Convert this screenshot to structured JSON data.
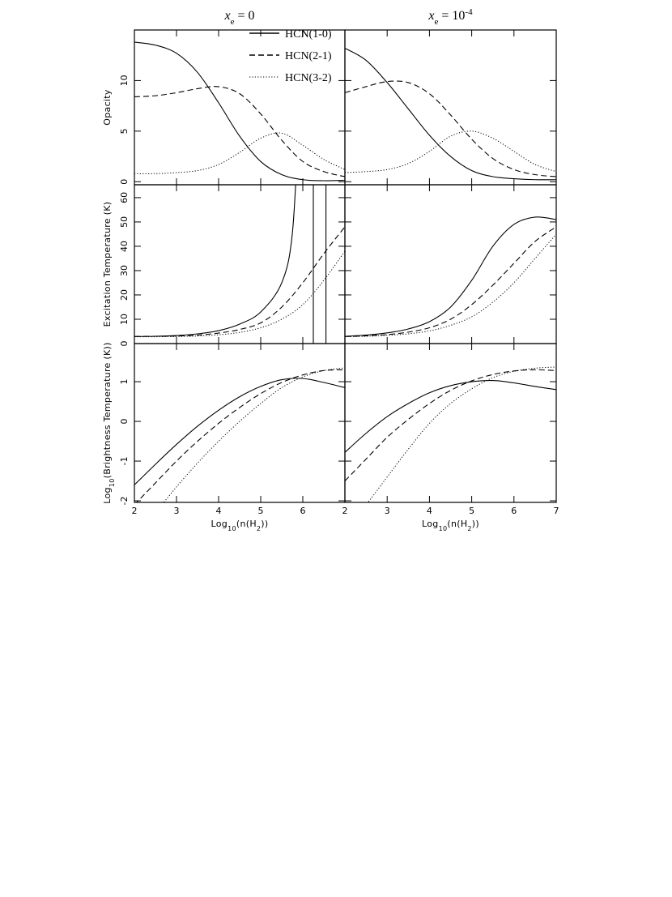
{
  "chart_data": [
    {
      "type": "line",
      "title": [
        {
          "text": "x",
          "style": "italic"
        },
        {
          "text": "e",
          "shift": "sub"
        },
        {
          "text": " = 0"
        }
      ],
      "ylabel": [
        {
          "text": "Opacity"
        }
      ],
      "x": [
        2,
        2.5,
        3,
        3.5,
        4,
        4.5,
        5,
        5.5,
        6,
        6.5,
        7
      ],
      "xlim": [
        2,
        7
      ],
      "xticks": [
        2,
        3,
        4,
        5,
        6
      ],
      "xtick_labels": false,
      "ylim": [
        -0.3,
        15
      ],
      "yticks": [
        0,
        5,
        10
      ],
      "ytick_labels": true,
      "legend": "upper right",
      "series": [
        {
          "name": "HCN(1-0)",
          "color": "#000000",
          "dash": "solid",
          "values": [
            13.8,
            13.5,
            12.7,
            10.8,
            7.8,
            4.5,
            2.0,
            0.7,
            0.2,
            0.1,
            0.15
          ]
        },
        {
          "name": "HCN(2-1)",
          "color": "#000000",
          "dash": "dashed",
          "values": [
            8.4,
            8.5,
            8.8,
            9.2,
            9.4,
            8.7,
            6.7,
            4.1,
            2.0,
            1.0,
            0.5
          ]
        },
        {
          "name": "HCN(3-2)",
          "color": "#000000",
          "dash": "dotted",
          "values": [
            0.8,
            0.8,
            0.9,
            1.1,
            1.7,
            2.9,
            4.3,
            4.8,
            3.6,
            2.2,
            1.2
          ]
        }
      ]
    },
    {
      "type": "line",
      "title": [
        {
          "text": "x",
          "style": "italic"
        },
        {
          "text": "e",
          "shift": "sub"
        },
        {
          "text": " = 10"
        },
        {
          "text": "-4",
          "shift": "sup"
        }
      ],
      "x": [
        2,
        2.5,
        3,
        3.5,
        4,
        4.5,
        5,
        5.5,
        6,
        6.5,
        7
      ],
      "xlim": [
        2,
        7
      ],
      "xticks": [
        2,
        3,
        4,
        5,
        6,
        7
      ],
      "xtick_labels": false,
      "ylim": [
        -0.3,
        15
      ],
      "yticks": [
        0,
        5,
        10
      ],
      "ytick_labels": false,
      "series": [
        {
          "color": "#000000",
          "dash": "solid",
          "values": [
            13.2,
            12.0,
            9.8,
            7.2,
            4.6,
            2.5,
            1.1,
            0.5,
            0.3,
            0.2,
            0.2
          ]
        },
        {
          "color": "#000000",
          "dash": "dashed",
          "values": [
            8.8,
            9.4,
            9.9,
            9.8,
            8.7,
            6.6,
            4.2,
            2.3,
            1.2,
            0.7,
            0.5
          ]
        },
        {
          "color": "#000000",
          "dash": "dotted",
          "values": [
            0.9,
            1.0,
            1.2,
            1.8,
            3.0,
            4.5,
            5.0,
            4.3,
            3.0,
            1.7,
            1.0
          ]
        }
      ]
    },
    {
      "type": "line",
      "ylabel": [
        {
          "text": "Excitation Temperature (K)"
        }
      ],
      "x": [
        2,
        2.5,
        3,
        3.5,
        4,
        4.5,
        5,
        5.5,
        6,
        6.5,
        7
      ],
      "xlim": [
        2,
        7
      ],
      "xticks": [
        2,
        3,
        4,
        5,
        6
      ],
      "xtick_labels": false,
      "ylim": [
        0,
        65.3
      ],
      "yticks": [
        0,
        10,
        20,
        30,
        40,
        50,
        60
      ],
      "ytick_labels": true,
      "series": [
        {
          "color": "#000000",
          "dash": "solid",
          "x": [
            2,
            2.5,
            3,
            3.5,
            4,
            4.5,
            5,
            5.5,
            5.75,
            5.9,
            6.0,
            6.25,
            6.25,
            6.4,
            6.55,
            6.55
          ],
          "values": [
            2.9,
            3.0,
            3.3,
            4.0,
            5.3,
            8.0,
            13,
            25,
            45,
            90,
            null,
            -10,
            100,
            null,
            -10,
            100
          ]
        },
        {
          "color": "#000000",
          "dash": "dashed",
          "values": [
            2.9,
            3.0,
            3.1,
            3.5,
            4.3,
            5.8,
            8.5,
            15,
            25,
            37,
            48
          ]
        },
        {
          "color": "#000000",
          "dash": "dotted",
          "values": [
            2.8,
            2.8,
            2.9,
            3.1,
            3.6,
            4.6,
            6.5,
            10,
            16,
            26,
            38
          ]
        }
      ]
    },
    {
      "type": "line",
      "x": [
        2,
        2.5,
        3,
        3.5,
        4,
        4.5,
        5,
        5.5,
        6,
        6.5,
        7
      ],
      "xlim": [
        2,
        7
      ],
      "xticks": [
        2,
        3,
        4,
        5,
        6,
        7
      ],
      "xtick_labels": false,
      "ylim": [
        0,
        65.3
      ],
      "yticks": [
        0,
        10,
        20,
        30,
        40,
        50,
        60
      ],
      "ytick_labels": false,
      "series": [
        {
          "color": "#000000",
          "dash": "solid",
          "values": [
            3,
            3.5,
            4.4,
            6,
            9,
            15,
            26,
            40,
            49,
            52,
            51
          ]
        },
        {
          "color": "#000000",
          "dash": "dashed",
          "values": [
            2.9,
            3.2,
            3.7,
            4.7,
            6.5,
            10,
            16,
            24,
            33,
            42,
            48
          ]
        },
        {
          "color": "#000000",
          "dash": "dotted",
          "values": [
            2.8,
            3.0,
            3.4,
            4.0,
            5.2,
            7.5,
            11,
            17,
            25,
            35,
            45
          ]
        }
      ]
    },
    {
      "type": "line",
      "ylabel": [
        {
          "text": "Log"
        },
        {
          "text": "10",
          "shift": "sub"
        },
        {
          "text": "(Brightness Temperature (K))"
        }
      ],
      "xlabel": [
        {
          "text": "Log"
        },
        {
          "text": "10",
          "shift": "sub"
        },
        {
          "text": "(n(H"
        },
        {
          "text": "2",
          "shift": "sub"
        },
        {
          "text": "))"
        }
      ],
      "x": [
        2,
        2.5,
        3,
        3.5,
        4,
        4.5,
        5,
        5.5,
        6,
        6.5,
        7
      ],
      "xlim": [
        2,
        7
      ],
      "xticks": [
        2,
        3,
        4,
        5,
        6
      ],
      "xtick_labels": true,
      "ylim": [
        -2.04,
        1.96
      ],
      "yticks": [
        -2,
        -1,
        0,
        1
      ],
      "ytick_labels": true,
      "series": [
        {
          "color": "#000000",
          "dash": "solid",
          "values": [
            -1.6,
            -1.08,
            -0.58,
            -0.12,
            0.28,
            0.62,
            0.88,
            1.05,
            1.08,
            0.98,
            0.85
          ]
        },
        {
          "color": "#000000",
          "dash": "dashed",
          "values": [
            -2.1,
            -1.55,
            -1.0,
            -0.5,
            -0.05,
            0.35,
            0.7,
            0.98,
            1.17,
            1.28,
            1.3
          ]
        },
        {
          "color": "#000000",
          "dash": "dotted",
          "values": [
            -2.95,
            -2.3,
            -1.65,
            -1.05,
            -0.5,
            0,
            0.45,
            0.85,
            1.12,
            1.28,
            1.35
          ]
        }
      ]
    },
    {
      "type": "line",
      "xlabel": [
        {
          "text": "Log"
        },
        {
          "text": "10",
          "shift": "sub"
        },
        {
          "text": "(n(H"
        },
        {
          "text": "2",
          "shift": "sub"
        },
        {
          "text": "))"
        }
      ],
      "x": [
        2,
        2.5,
        3,
        3.5,
        4,
        4.5,
        5,
        5.5,
        6,
        6.5,
        7
      ],
      "xlim": [
        2,
        7
      ],
      "xticks": [
        2,
        3,
        4,
        5,
        6,
        7
      ],
      "xtick_labels": true,
      "ylim": [
        -2.04,
        1.96
      ],
      "yticks": [
        -2,
        -1,
        0,
        1
      ],
      "ytick_labels": false,
      "series": [
        {
          "color": "#000000",
          "dash": "solid",
          "values": [
            -0.78,
            -0.3,
            0.12,
            0.45,
            0.72,
            0.9,
            1.0,
            1.03,
            0.97,
            0.88,
            0.8
          ]
        },
        {
          "color": "#000000",
          "dash": "dashed",
          "values": [
            -1.5,
            -0.95,
            -0.4,
            0.05,
            0.45,
            0.78,
            1.02,
            1.18,
            1.27,
            1.3,
            1.28
          ]
        },
        {
          "color": "#000000",
          "dash": "dotted",
          "values": [
            -2.7,
            -2.1,
            -1.4,
            -0.7,
            -0.05,
            0.45,
            0.82,
            1.1,
            1.26,
            1.34,
            1.37
          ]
        }
      ]
    }
  ]
}
